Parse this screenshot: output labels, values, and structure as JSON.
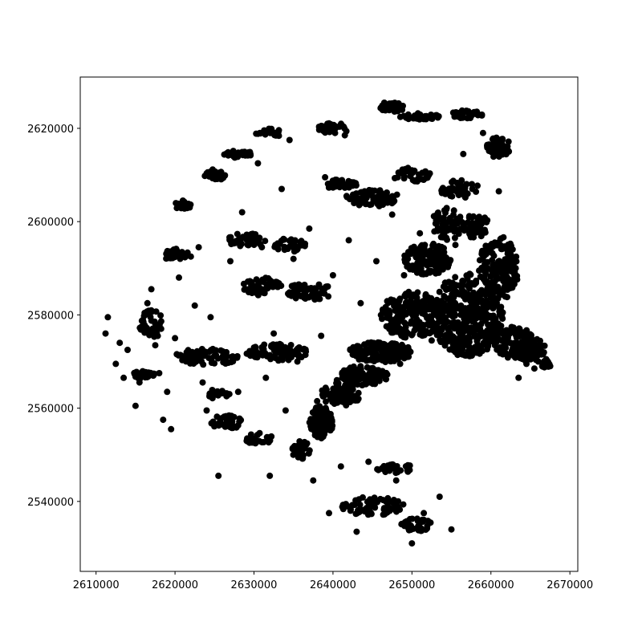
{
  "colors": {
    "background": "#ffffff",
    "marker": "#000000",
    "axes": "#000000"
  },
  "chart_data": {
    "type": "scatter",
    "title": "",
    "xlabel": "",
    "ylabel": "",
    "xlim": [
      2608000,
      2671000
    ],
    "ylim": [
      2525000,
      2631000
    ],
    "grid": false,
    "legend": "none",
    "xticks": [
      2610000,
      2620000,
      2630000,
      2640000,
      2650000,
      2660000,
      2670000
    ],
    "yticks": [
      2540000,
      2560000,
      2580000,
      2600000,
      2620000
    ],
    "xtick_labels": [
      "2610000",
      "2620000",
      "2630000",
      "2640000",
      "2650000",
      "2660000",
      "2670000"
    ],
    "ytick_labels": [
      "2540000",
      "2560000",
      "2580000",
      "2600000",
      "2620000"
    ],
    "marker": {
      "shape": "circle",
      "color": "#000000"
    },
    "series": [
      {
        "values": [
          {
            "x": 2611500,
            "y": 2579500
          },
          {
            "x": 2611200,
            "y": 2576000
          },
          {
            "x": 2612500,
            "y": 2569500
          },
          {
            "x": 2613000,
            "y": 2574000
          },
          {
            "x": 2613500,
            "y": 2566500
          },
          {
            "x": 2614000,
            "y": 2572500
          },
          {
            "x": 2615000,
            "y": 2560500
          },
          {
            "x": 2615500,
            "y": 2565500
          },
          {
            "x": 2616000,
            "y": 2578500
          },
          {
            "x": 2616500,
            "y": 2582500
          },
          {
            "x": 2617000,
            "y": 2585500
          },
          {
            "x": 2617500,
            "y": 2573500
          },
          {
            "x": 2618000,
            "y": 2567500
          },
          {
            "x": 2618500,
            "y": 2557500
          },
          {
            "x": 2619000,
            "y": 2563500
          },
          {
            "x": 2619500,
            "y": 2555500
          },
          {
            "x": 2620000,
            "y": 2575000
          },
          {
            "x": 2620500,
            "y": 2588000
          },
          {
            "x": 2621000,
            "y": 2604500
          },
          {
            "x": 2621500,
            "y": 2571000
          },
          {
            "x": 2622000,
            "y": 2592500
          },
          {
            "x": 2622500,
            "y": 2582000
          },
          {
            "x": 2623000,
            "y": 2594500
          },
          {
            "x": 2623500,
            "y": 2565500
          },
          {
            "x": 2624000,
            "y": 2559500
          },
          {
            "x": 2624500,
            "y": 2579500
          },
          {
            "x": 2625000,
            "y": 2610000
          },
          {
            "x": 2625500,
            "y": 2545500
          },
          {
            "x": 2626000,
            "y": 2556500
          },
          {
            "x": 2626500,
            "y": 2572000
          },
          {
            "x": 2627000,
            "y": 2591500
          },
          {
            "x": 2627500,
            "y": 2614500
          },
          {
            "x": 2628000,
            "y": 2563500
          },
          {
            "x": 2628500,
            "y": 2602000
          },
          {
            "x": 2629000,
            "y": 2585500
          },
          {
            "x": 2629500,
            "y": 2553500
          },
          {
            "x": 2630000,
            "y": 2573000
          },
          {
            "x": 2630500,
            "y": 2612500
          },
          {
            "x": 2631000,
            "y": 2594500
          },
          {
            "x": 2631500,
            "y": 2566500
          },
          {
            "x": 2632000,
            "y": 2545500
          },
          {
            "x": 2632500,
            "y": 2576000
          },
          {
            "x": 2633000,
            "y": 2586000
          },
          {
            "x": 2633500,
            "y": 2607000
          },
          {
            "x": 2634000,
            "y": 2559500
          },
          {
            "x": 2634500,
            "y": 2617500
          },
          {
            "x": 2635000,
            "y": 2592000
          },
          {
            "x": 2635500,
            "y": 2570000
          },
          {
            "x": 2636000,
            "y": 2552500
          },
          {
            "x": 2636500,
            "y": 2583500
          },
          {
            "x": 2637000,
            "y": 2598500
          },
          {
            "x": 2637500,
            "y": 2544500
          },
          {
            "x": 2638000,
            "y": 2561500
          },
          {
            "x": 2638500,
            "y": 2575500
          },
          {
            "x": 2639000,
            "y": 2609500
          },
          {
            "x": 2639500,
            "y": 2537500
          },
          {
            "x": 2640000,
            "y": 2588500
          },
          {
            "x": 2640500,
            "y": 2566000
          },
          {
            "x": 2641000,
            "y": 2547500
          },
          {
            "x": 2641500,
            "y": 2618500
          },
          {
            "x": 2642000,
            "y": 2596000
          },
          {
            "x": 2642500,
            "y": 2571500
          },
          {
            "x": 2643000,
            "y": 2533500
          },
          {
            "x": 2643500,
            "y": 2582500
          },
          {
            "x": 2644000,
            "y": 2606500
          },
          {
            "x": 2644500,
            "y": 2548500
          },
          {
            "x": 2645000,
            "y": 2573500
          },
          {
            "x": 2645500,
            "y": 2591500
          },
          {
            "x": 2646000,
            "y": 2540500
          },
          {
            "x": 2646500,
            "y": 2625500
          },
          {
            "x": 2647000,
            "y": 2577500
          },
          {
            "x": 2647500,
            "y": 2601500
          },
          {
            "x": 2648000,
            "y": 2544500
          },
          {
            "x": 2648500,
            "y": 2569500
          },
          {
            "x": 2649000,
            "y": 2588500
          },
          {
            "x": 2649500,
            "y": 2611500
          },
          {
            "x": 2650000,
            "y": 2531000
          },
          {
            "x": 2650500,
            "y": 2580000
          },
          {
            "x": 2651000,
            "y": 2597500
          },
          {
            "x": 2651500,
            "y": 2537500
          },
          {
            "x": 2652000,
            "y": 2622500
          },
          {
            "x": 2652500,
            "y": 2574500
          },
          {
            "x": 2653000,
            "y": 2589000
          },
          {
            "x": 2653500,
            "y": 2541000
          },
          {
            "x": 2654000,
            "y": 2607000
          },
          {
            "x": 2654500,
            "y": 2578500
          },
          {
            "x": 2655000,
            "y": 2534000
          },
          {
            "x": 2655500,
            "y": 2595000
          },
          {
            "x": 2656000,
            "y": 2574000
          },
          {
            "x": 2656500,
            "y": 2614500
          },
          {
            "x": 2657000,
            "y": 2583500
          },
          {
            "x": 2657500,
            "y": 2599500
          },
          {
            "x": 2658000,
            "y": 2577000
          },
          {
            "x": 2658500,
            "y": 2589500
          },
          {
            "x": 2659000,
            "y": 2619000
          },
          {
            "x": 2659500,
            "y": 2581500
          },
          {
            "x": 2660000,
            "y": 2593500
          },
          {
            "x": 2660500,
            "y": 2573500
          },
          {
            "x": 2661000,
            "y": 2606500
          },
          {
            "x": 2661500,
            "y": 2580500
          },
          {
            "x": 2662000,
            "y": 2586500
          },
          {
            "x": 2662500,
            "y": 2571500
          },
          {
            "x": 2663000,
            "y": 2576500
          },
          {
            "x": 2663500,
            "y": 2566500
          },
          {
            "x": 2664000,
            "y": 2573000
          },
          {
            "x": 2664500,
            "y": 2569500
          },
          {
            "x": 2665000,
            "y": 2575000
          },
          {
            "x": 2665500,
            "y": 2568500
          },
          {
            "x": 2666000,
            "y": 2570000
          },
          {
            "x": 2666500,
            "y": 2569000
          },
          {
            "x": 2667000,
            "y": 2570500
          },
          {
            "x": 2667500,
            "y": 2569000
          }
        ]
      }
    ]
  }
}
